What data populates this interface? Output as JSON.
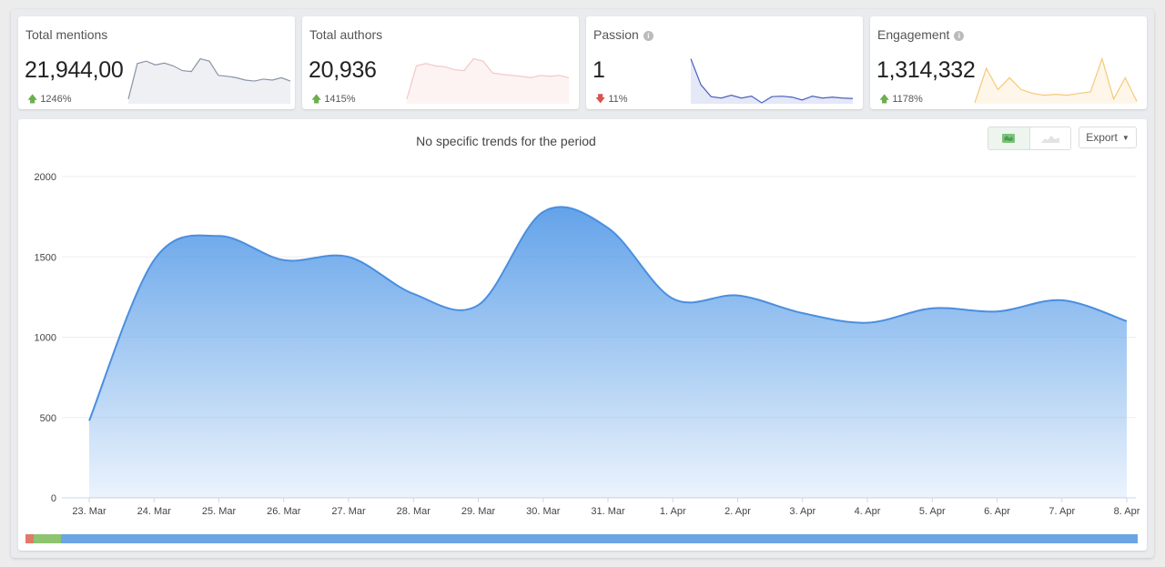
{
  "cards": [
    {
      "title": "Total mentions",
      "value": "21,944,00",
      "delta": "1246%",
      "direction": "up",
      "info": false,
      "color": "#8a94a8",
      "fill": "#eef0f4",
      "spark": [
        0.1,
        0.85,
        0.9,
        0.82,
        0.86,
        0.8,
        0.7,
        0.68,
        0.95,
        0.9,
        0.6,
        0.58,
        0.55,
        0.5,
        0.48,
        0.52,
        0.5,
        0.55,
        0.48
      ]
    },
    {
      "title": "Total authors",
      "value": "20,936",
      "delta": "1415%",
      "direction": "up",
      "info": false,
      "color": "#f4c7c7",
      "fill": "#fdf3f3",
      "spark": [
        0.1,
        0.8,
        0.85,
        0.8,
        0.78,
        0.72,
        0.7,
        0.95,
        0.9,
        0.65,
        0.62,
        0.6,
        0.58,
        0.55,
        0.6,
        0.58,
        0.6,
        0.55
      ]
    },
    {
      "title": "Passion",
      "value": "1",
      "delta": "11%",
      "direction": "down",
      "info": true,
      "color": "#4a5fc1",
      "fill": "#e4e8f7",
      "spark": [
        0.95,
        0.4,
        0.15,
        0.12,
        0.18,
        0.12,
        0.16,
        0.02,
        0.15,
        0.16,
        0.14,
        0.08,
        0.16,
        0.12,
        0.14,
        0.12,
        0.11
      ]
    },
    {
      "title": "Engagement",
      "value": "1,314,332",
      "delta": "1178%",
      "direction": "up",
      "info": true,
      "color": "#f5c97a",
      "fill": "#fef6e8",
      "spark": [
        0.02,
        0.75,
        0.3,
        0.55,
        0.3,
        0.22,
        0.18,
        0.2,
        0.18,
        0.22,
        0.25,
        0.95,
        0.1,
        0.55,
        0.05
      ]
    }
  ],
  "chart_data": {
    "type": "area",
    "title": "No specific trends for the period",
    "categories": [
      "23. Mar",
      "24. Mar",
      "25. Mar",
      "26. Mar",
      "27. Mar",
      "28. Mar",
      "29. Mar",
      "30. Mar",
      "31. Mar",
      "1. Apr",
      "2. Apr",
      "3. Apr",
      "4. Apr",
      "5. Apr",
      "6. Apr",
      "7. Apr",
      "8. Apr"
    ],
    "values": [
      480,
      1480,
      1630,
      1480,
      1500,
      1270,
      1200,
      1780,
      1680,
      1240,
      1260,
      1150,
      1090,
      1180,
      1160,
      1230,
      1100
    ],
    "yticks": [
      0,
      500,
      1000,
      1500,
      2000
    ],
    "ylim": [
      0,
      2000
    ],
    "color": "#5b9ee8",
    "grid": true
  },
  "toolbar": {
    "export_label": "Export"
  },
  "range_bar": [
    {
      "color": "#e07a6a",
      "fraction": 0.007
    },
    {
      "color": "#8ec46f",
      "fraction": 0.025
    },
    {
      "color": "#6aa5e4",
      "fraction": 0.968
    }
  ]
}
